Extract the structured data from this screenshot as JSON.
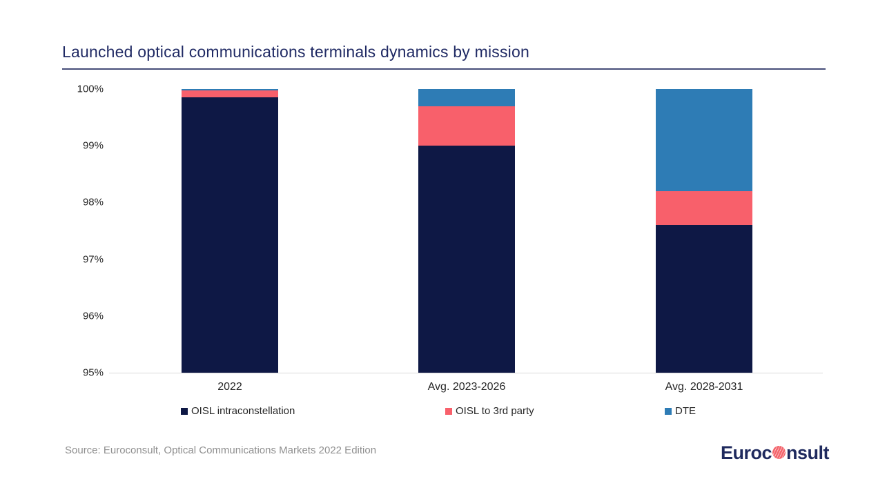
{
  "header": {
    "title": "Launched optical communications terminals dynamics by mission",
    "title_color": "#202A64",
    "rule_color": "#454C78"
  },
  "chart_data": {
    "type": "bar",
    "stacked": true,
    "units": "percent share of launched optical terminals",
    "categories": [
      "2022",
      "Avg. 2023-2026",
      "Avg. 2028-2031"
    ],
    "series": [
      {
        "name": "OISL intraconstellation",
        "color": "#0E1845",
        "values": [
          99.85,
          99.0,
          97.6
        ]
      },
      {
        "name": "OISL to 3rd party",
        "color": "#F8606B",
        "values": [
          0.12,
          0.7,
          0.6
        ]
      },
      {
        "name": "DTE",
        "color": "#2E7CB5",
        "values": [
          0.03,
          0.3,
          1.8
        ]
      }
    ],
    "ylim": [
      95,
      100
    ],
    "y_ticks": [
      {
        "value": 100,
        "label": "100%"
      },
      {
        "value": 99,
        "label": "99%"
      },
      {
        "value": 98,
        "label": "98%"
      },
      {
        "value": 97,
        "label": "97%"
      },
      {
        "value": 96,
        "label": "96%"
      },
      {
        "value": 95,
        "label": "95%"
      }
    ],
    "grid": "bottom-axis-line-only",
    "legend_position": "bottom",
    "axis_label_color": "#262626",
    "baseline_color": "#D9D9D9"
  },
  "footer": {
    "source": "Source: Euroconsult, Optical Communications Markets 2022 Edition"
  },
  "logo": {
    "name": "Euroconsult",
    "text_left": "Euroc",
    "text_right": "nsult",
    "text_color": "#1F2A5E",
    "globe_color": "#F4656C"
  }
}
